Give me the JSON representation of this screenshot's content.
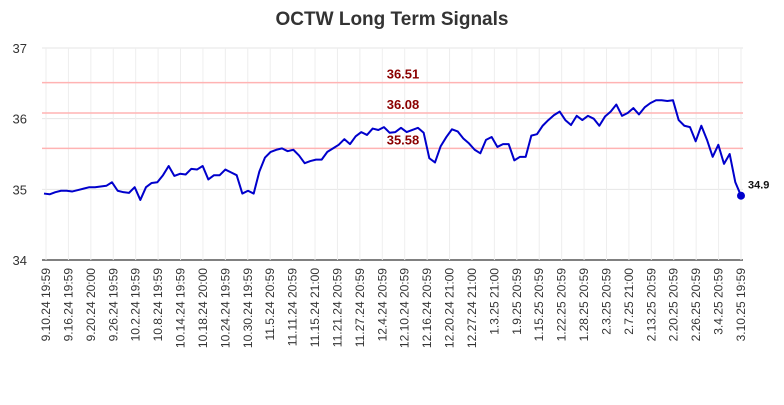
{
  "chart_data": {
    "type": "line",
    "title": "OCTW Long Term Signals",
    "xlabel": "",
    "ylabel": "",
    "ylim": [
      34,
      37
    ],
    "yticks": [
      34,
      35,
      36,
      37
    ],
    "grid": true,
    "line_color": "#0000cc",
    "hline_color": "#ffb3b3",
    "hline_label_color": "#8b0000",
    "x_ticks": [
      "9.10.24 19:59",
      "9.16.24 19:59",
      "9.20.24 20:00",
      "9.26.24 19:59",
      "10.2.24 19:59",
      "10.8.24 19:59",
      "10.14.24 19:59",
      "10.18.24 20:00",
      "10.24.24 19:59",
      "10.30.24 19:59",
      "11.5.24 20:59",
      "11.11.24 20:59",
      "11.15.24 21:00",
      "11.21.24 20:59",
      "11.27.24 20:59",
      "12.4.24 20:59",
      "12.10.24 20:59",
      "12.16.24 20:59",
      "12.20.24 21:00",
      "12.27.24 21:00",
      "1.3.25 21:00",
      "1.9.25 20:59",
      "1.15.25 20:59",
      "1.22.25 20:59",
      "1.28.25 20:59",
      "2.3.25 20:59",
      "2.7.25 21:00",
      "2.13.25 20:59",
      "2.20.25 20:59",
      "2.26.25 20:59",
      "3.4.25 20:59",
      "3.10.25 19:59"
    ],
    "hlines": [
      {
        "value": 36.51,
        "label": "36.51"
      },
      {
        "value": 36.08,
        "label": "36.08"
      },
      {
        "value": 35.58,
        "label": "35.58"
      }
    ],
    "series": [
      {
        "values": [
          34.94,
          34.93,
          34.96,
          34.98,
          34.98,
          34.97,
          34.99,
          35.01,
          35.03,
          35.03,
          35.04,
          35.05,
          35.1,
          34.98,
          34.96,
          34.95,
          35.03,
          34.85,
          35.03,
          35.09,
          35.1,
          35.2,
          35.33,
          35.19,
          35.22,
          35.21,
          35.29,
          35.28,
          35.33,
          35.14,
          35.2,
          35.2,
          35.28,
          35.24,
          35.2,
          34.94,
          34.98,
          34.94,
          35.25,
          35.45,
          35.53,
          35.56,
          35.58,
          35.54,
          35.56,
          35.48,
          35.37,
          35.4,
          35.42,
          35.42,
          35.53,
          35.58,
          35.63,
          35.71,
          35.64,
          35.75,
          35.81,
          35.77,
          35.86,
          35.84,
          35.88,
          35.8,
          35.81,
          35.87,
          35.81,
          35.84,
          35.87,
          35.8,
          35.44,
          35.38,
          35.61,
          35.74,
          35.85,
          35.82,
          35.72,
          35.65,
          35.56,
          35.51,
          35.7,
          35.74,
          35.6,
          35.64,
          35.64,
          35.41,
          35.46,
          35.46,
          35.76,
          35.78,
          35.9,
          35.98,
          36.05,
          36.1,
          35.98,
          35.91,
          36.04,
          35.98,
          36.04,
          36.0,
          35.9,
          36.03,
          36.1,
          36.2,
          36.04,
          36.08,
          36.15,
          36.06,
          36.16,
          36.22,
          36.26,
          36.26,
          36.25,
          36.26,
          35.98,
          35.9,
          35.88,
          35.68,
          35.9,
          35.7,
          35.46,
          35.63,
          35.36,
          35.5,
          35.1,
          34.91
        ],
        "last_value_label": "34.9"
      }
    ]
  }
}
